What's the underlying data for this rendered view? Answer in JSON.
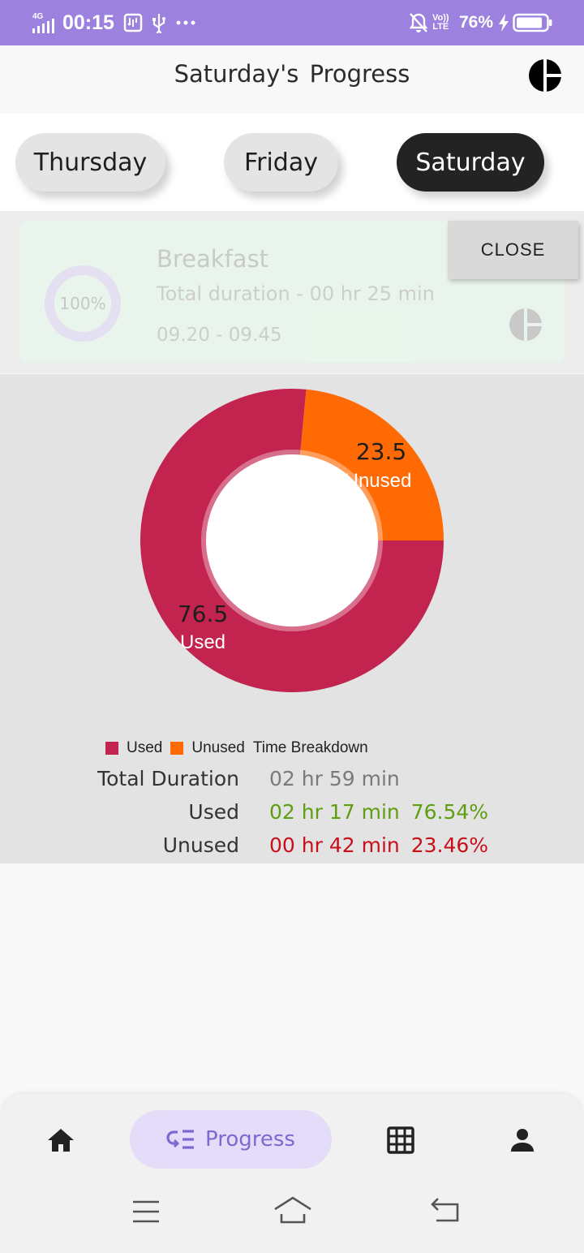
{
  "status_bar": {
    "network": "4G",
    "time": "00:15",
    "lte_top": "Vo))",
    "lte_bottom": "LTE",
    "battery": "76%"
  },
  "header": {
    "title": "Saturday's  Progress",
    "icon": "pie-chart-icon"
  },
  "day_tabs": [
    {
      "label": "Thursday",
      "active": false
    },
    {
      "label": "Friday",
      "active": false
    },
    {
      "label": "Saturday",
      "active": true
    }
  ],
  "meal_card": {
    "percent": "100%",
    "title": "Breakfast",
    "duration": "Total duration - 00 hr 25 min",
    "time_range": "09.20 - 09.45",
    "close_label": "CLOSE"
  },
  "chart_data": {
    "type": "pie",
    "variant": "donut",
    "slices": [
      {
        "name": "Used",
        "value": 76.5,
        "color": "#c2234f"
      },
      {
        "name": "Unused",
        "value": 23.5,
        "color": "#ff6a05"
      }
    ],
    "title": "Time Breakdown",
    "legend_position": "bottom"
  },
  "stats": {
    "total_label": "Total Duration",
    "total_value": "02 hr 59 min",
    "used_label": "Used",
    "used_value": "02 hr 17 min",
    "used_pct": "76.54%",
    "unused_label": "Unused",
    "unused_value": "00 hr 42 min",
    "unused_pct": "23.46%"
  },
  "colors": {
    "status_bar": "#9c81de",
    "used_text": "#5f9e12",
    "unused_text": "#c8101a",
    "accent": "#7f68cf"
  },
  "bottom_nav": {
    "home_icon": "home-icon",
    "progress_label": "Progress",
    "grid_icon": "grid-icon",
    "profile_icon": "person-icon"
  }
}
